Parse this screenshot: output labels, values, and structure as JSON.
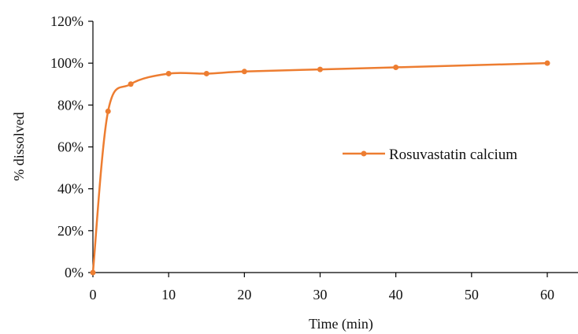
{
  "chart_data": {
    "type": "scatter",
    "title": "",
    "xlabel": "Time (min)",
    "ylabel": "% dissolved",
    "xlim": [
      0,
      60
    ],
    "ylim": [
      0,
      120
    ],
    "x_ticks": [
      0,
      10,
      20,
      30,
      40,
      50,
      60
    ],
    "x_tick_labels": [
      "0",
      "10",
      "20",
      "30",
      "40",
      "50",
      "60"
    ],
    "y_ticks": [
      0,
      20,
      40,
      60,
      80,
      100,
      120
    ],
    "y_tick_labels": [
      "0%",
      "20%",
      "40%",
      "60%",
      "80%",
      "100%",
      "120%"
    ],
    "grid": false,
    "legend_position": "right-middle",
    "series": [
      {
        "name": "Rosuvastatin calcium",
        "color": "#ED7D31",
        "line": "smoothed",
        "marker": "circle",
        "x": [
          0,
          2,
          5,
          10,
          15,
          20,
          30,
          40,
          60
        ],
        "y": [
          0,
          77,
          90,
          95,
          95,
          96,
          97,
          98,
          100
        ]
      }
    ]
  }
}
